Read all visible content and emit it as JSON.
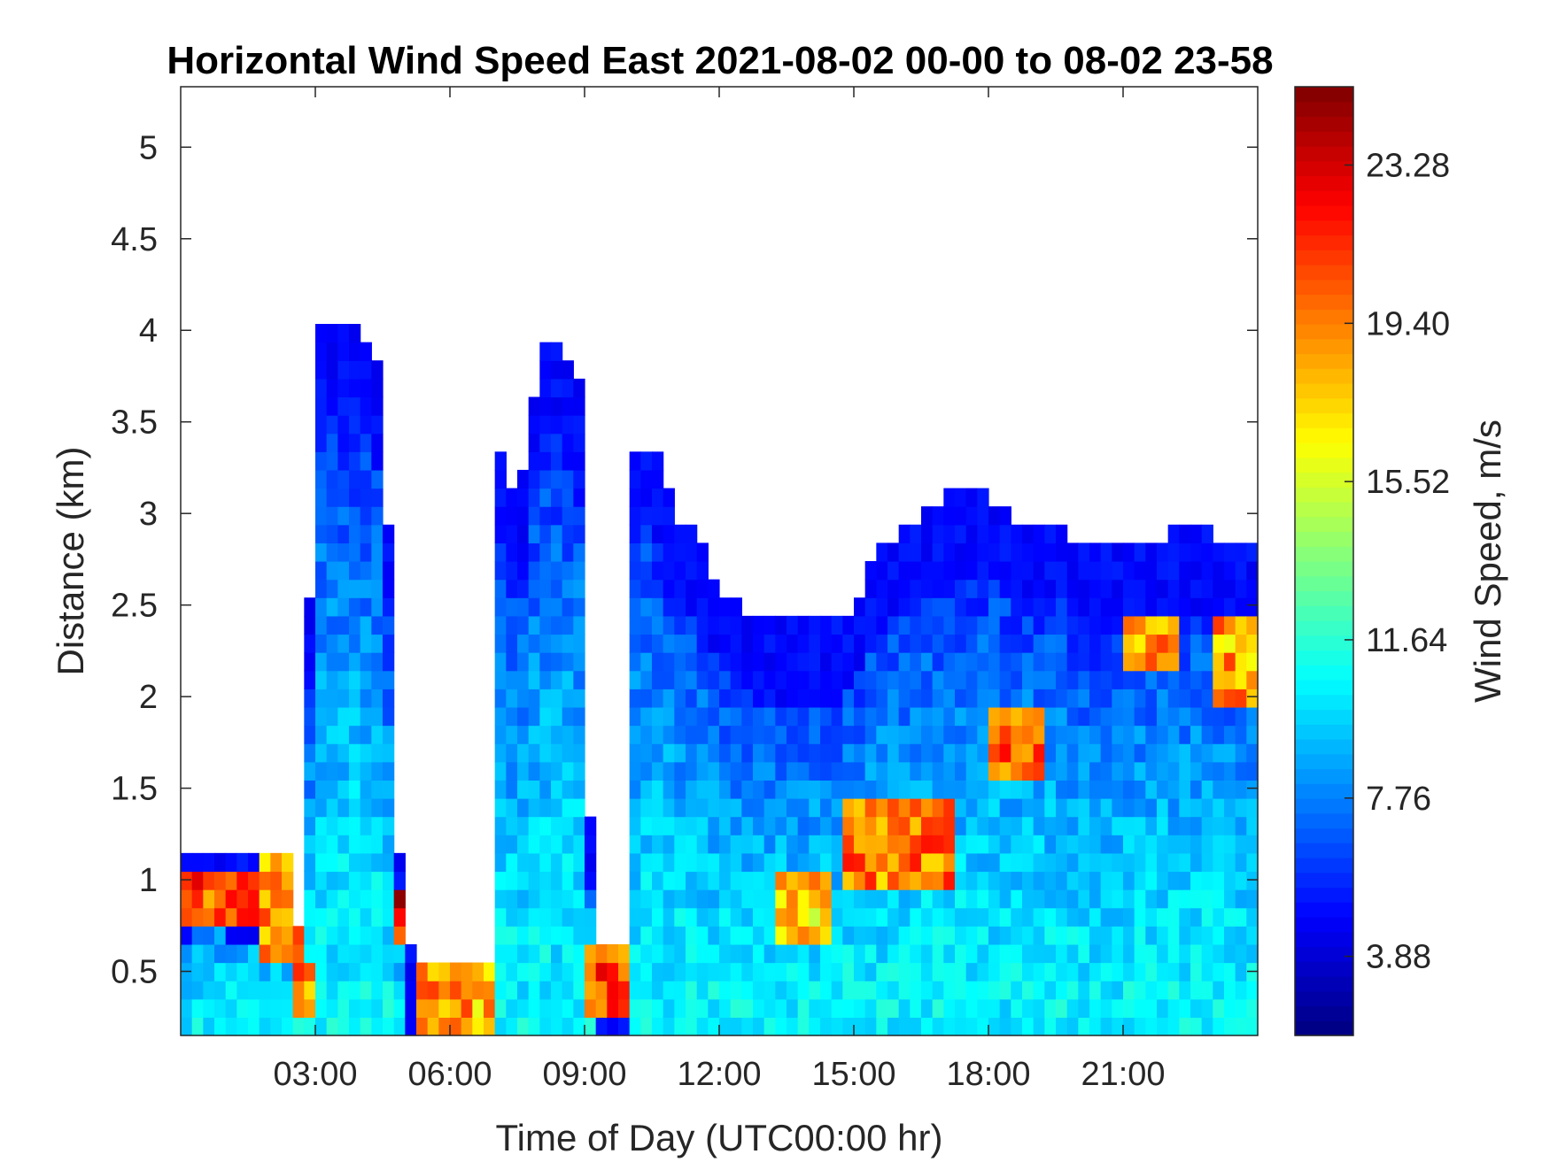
{
  "chart_data": {
    "type": "heatmap",
    "title": "Horizontal Wind Speed East 2021-08-02 00-00 to 08-02 23-58",
    "xlabel": "Time of Day (UTC00:00 hr)",
    "ylabel": "Distance (km)",
    "colorbar_label": "Wind Speed, m/s",
    "xlim": [
      0,
      24
    ],
    "ylim": [
      0.15,
      5.33
    ],
    "x_ticks": [
      3,
      6,
      9,
      12,
      15,
      18,
      21
    ],
    "x_tick_labels": [
      "03:00",
      "06:00",
      "09:00",
      "12:00",
      "15:00",
      "18:00",
      "21:00"
    ],
    "y_ticks": [
      0.5,
      1,
      1.5,
      2,
      2.5,
      3,
      3.5,
      4,
      4.5,
      5
    ],
    "y_tick_labels": [
      "0.5",
      "1",
      "1.5",
      "2",
      "2.5",
      "3",
      "3.5",
      "4",
      "4.5",
      "5"
    ],
    "colorbar_range": [
      1.94,
      25.2
    ],
    "colorbar_ticks": [
      3.88,
      7.76,
      11.64,
      15.52,
      19.4,
      23.28
    ],
    "colorbar_tick_labels": [
      "3.88",
      "7.76",
      "11.64",
      "15.52",
      "19.40",
      "23.28"
    ],
    "colormap": "jet",
    "grid": false,
    "missing_data_color": "#ffffff",
    "data_top_km": [
      [
        0.0,
        1.1
      ],
      [
        0.5,
        1.2
      ],
      [
        1.5,
        1.1
      ],
      [
        2.0,
        1.1
      ],
      [
        2.4,
        1.2
      ],
      [
        2.6,
        0.6
      ],
      [
        2.8,
        1.6
      ],
      [
        3.0,
        4.0
      ],
      [
        3.3,
        4.0
      ],
      [
        3.8,
        4.1
      ],
      [
        4.2,
        3.9
      ],
      [
        4.5,
        3.8
      ],
      [
        4.9,
        1.0
      ],
      [
        5.2,
        0.5
      ],
      [
        6.0,
        0.5
      ],
      [
        6.6,
        0.6
      ],
      [
        6.9,
        0.5
      ],
      [
        7.0,
        3.5
      ],
      [
        7.5,
        3.0
      ],
      [
        8.0,
        3.9
      ],
      [
        8.5,
        3.9
      ],
      [
        8.9,
        3.7
      ],
      [
        9.2,
        0.6
      ],
      [
        9.9,
        0.6
      ],
      [
        10.0,
        3.3
      ],
      [
        10.5,
        3.4
      ],
      [
        11.0,
        3.0
      ],
      [
        11.5,
        2.9
      ],
      [
        12.0,
        2.6
      ],
      [
        12.5,
        2.5
      ],
      [
        13.0,
        2.4
      ],
      [
        14.0,
        2.4
      ],
      [
        14.5,
        2.4
      ],
      [
        15.0,
        2.5
      ],
      [
        15.5,
        2.8
      ],
      [
        16.0,
        2.9
      ],
      [
        16.5,
        3.0
      ],
      [
        17.0,
        3.1
      ],
      [
        18.0,
        3.1
      ],
      [
        19.0,
        2.9
      ],
      [
        19.5,
        3.0
      ],
      [
        20.0,
        2.8
      ],
      [
        21.0,
        2.8
      ],
      [
        22.0,
        2.9
      ],
      [
        23.0,
        2.9
      ],
      [
        24.0,
        2.8
      ]
    ],
    "high_speed_patches": [
      {
        "x": [
          0.0,
          1.8
        ],
        "y": [
          0.7,
          1.05
        ],
        "value": 20
      },
      {
        "x": [
          1.8,
          2.7
        ],
        "y": [
          0.5,
          1.1
        ],
        "value": 18
      },
      {
        "x": [
          2.6,
          3.0
        ],
        "y": [
          0.2,
          0.55
        ],
        "value": 19
      },
      {
        "x": [
          4.7,
          5.2
        ],
        "y": [
          0.6,
          0.95
        ],
        "value": 22
      },
      {
        "x": [
          5.3,
          7.0
        ],
        "y": [
          0.15,
          0.5
        ],
        "value": 18
      },
      {
        "x": [
          8.9,
          9.9
        ],
        "y": [
          0.25,
          0.6
        ],
        "value": 20
      },
      {
        "x": [
          13.3,
          14.5
        ],
        "y": [
          0.6,
          1.0
        ],
        "value": 17
      },
      {
        "x": [
          14.8,
          17.2
        ],
        "y": [
          0.95,
          1.45
        ],
        "value": 19
      },
      {
        "x": [
          18.0,
          19.3
        ],
        "y": [
          1.55,
          1.95
        ],
        "value": 20
      },
      {
        "x": [
          21.0,
          22.3
        ],
        "y": [
          2.1,
          2.45
        ],
        "value": 18
      },
      {
        "x": [
          23.0,
          24.0
        ],
        "y": [
          1.9,
          2.4
        ],
        "value": 18
      }
    ]
  }
}
